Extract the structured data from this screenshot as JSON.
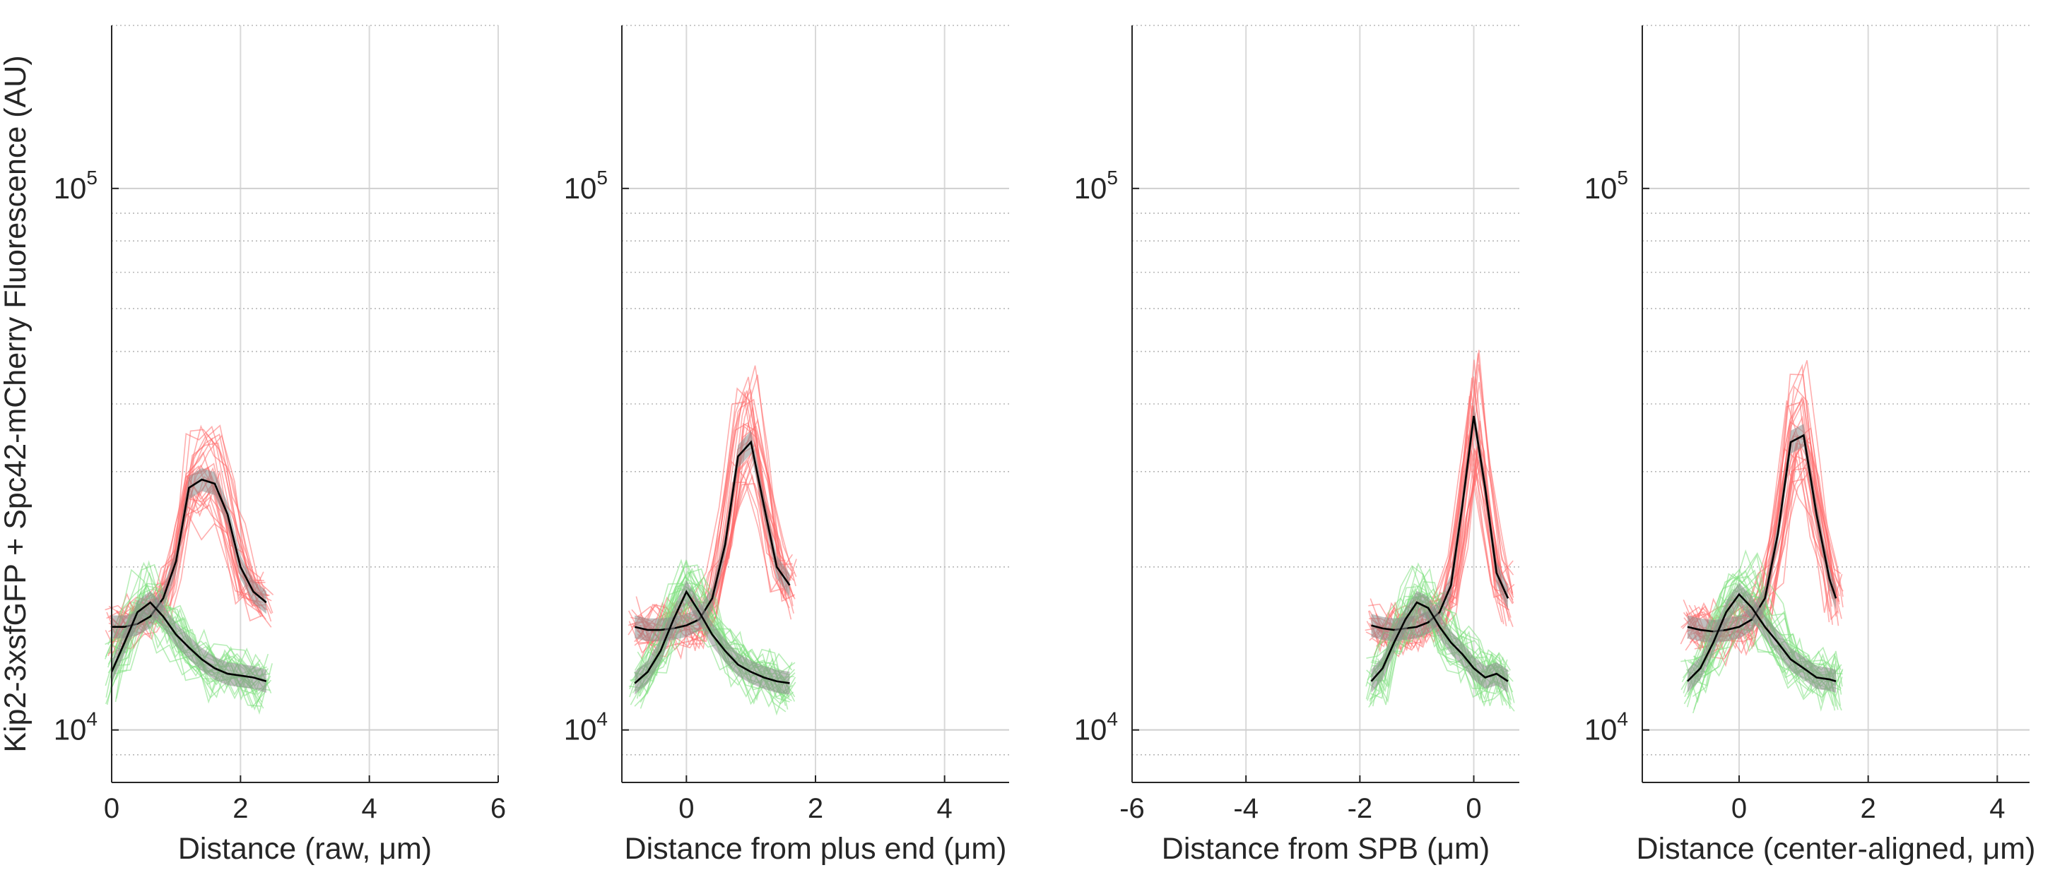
{
  "figure": {
    "ylabel": "Kip2-3xsfGFP + Spc42-mCherry Fluorescence (AU)",
    "colors": {
      "red_traces": "#ff6b6b",
      "green_traces": "#7ee07e",
      "mean_line": "#000000",
      "confidence_band": "#8c8c8c",
      "grid": "#d9d9d9"
    }
  },
  "chart_data": [
    {
      "type": "line",
      "xlabel": "Distance (raw, μm)",
      "xlim": [
        0,
        6
      ],
      "xticks": [
        0,
        2,
        4,
        6
      ],
      "xtick_labels": [
        "0",
        "2",
        "4",
        "6"
      ],
      "yscale": "log",
      "ylim": [
        8000,
        200000
      ],
      "ytick_labels": [
        "10^4",
        "10^5"
      ],
      "grid": "on",
      "series": [
        {
          "color": "red",
          "x": [
            0,
            0.2,
            0.4,
            0.6,
            0.8,
            1.0,
            1.2,
            1.4,
            1.6,
            1.8,
            2.0,
            2.2,
            2.4
          ],
          "y": [
            15500,
            15500,
            15700,
            16200,
            17500,
            20500,
            28000,
            29000,
            28500,
            25000,
            20000,
            18000,
            17200
          ]
        },
        {
          "color": "green",
          "x": [
            0,
            0.2,
            0.4,
            0.6,
            0.8,
            1.0,
            1.2,
            1.4,
            1.6,
            1.8,
            2.0,
            2.2,
            2.4
          ],
          "y": [
            12800,
            14500,
            16500,
            17200,
            16200,
            15000,
            14200,
            13500,
            13000,
            12700,
            12600,
            12500,
            12300
          ]
        }
      ]
    },
    {
      "type": "line",
      "xlabel": "Distance from plus end (μm)",
      "xlim": [
        -1,
        5
      ],
      "xticks": [
        0,
        2,
        4
      ],
      "xtick_labels": [
        "0",
        "2",
        "4"
      ],
      "yscale": "log",
      "ylim": [
        8000,
        200000
      ],
      "ytick_labels": [
        "10^4",
        "10^5"
      ],
      "grid": "on",
      "series": [
        {
          "color": "red",
          "x": [
            -0.8,
            -0.6,
            -0.4,
            -0.2,
            0,
            0.2,
            0.4,
            0.6,
            0.8,
            1.0,
            1.2,
            1.4,
            1.6
          ],
          "y": [
            15500,
            15300,
            15300,
            15400,
            15600,
            16000,
            17500,
            22000,
            32000,
            34000,
            26000,
            20000,
            18500
          ]
        },
        {
          "color": "green",
          "x": [
            -0.8,
            -0.6,
            -0.4,
            -0.2,
            0,
            0.2,
            0.4,
            0.6,
            0.8,
            1.0,
            1.2,
            1.4,
            1.6
          ],
          "y": [
            12200,
            12800,
            14000,
            16000,
            18000,
            16500,
            15000,
            14000,
            13200,
            12800,
            12500,
            12300,
            12200
          ]
        }
      ]
    },
    {
      "type": "line",
      "xlabel": "Distance from SPB (μm)",
      "xlim": [
        -6,
        0.8
      ],
      "xticks": [
        -6,
        -4,
        -2,
        0
      ],
      "xtick_labels": [
        "-6",
        "-4",
        "-2",
        "0"
      ],
      "yscale": "log",
      "ylim": [
        8000,
        200000
      ],
      "ytick_labels": [
        "10^4",
        "10^5"
      ],
      "grid": "on",
      "series": [
        {
          "color": "red",
          "x": [
            -1.8,
            -1.6,
            -1.4,
            -1.2,
            -1.0,
            -0.8,
            -0.6,
            -0.4,
            -0.2,
            0,
            0.2,
            0.4,
            0.6
          ],
          "y": [
            15600,
            15400,
            15300,
            15400,
            15500,
            15800,
            16500,
            18500,
            26000,
            38000,
            28000,
            19500,
            17500
          ]
        },
        {
          "color": "green",
          "x": [
            -1.8,
            -1.6,
            -1.4,
            -1.2,
            -1.0,
            -0.8,
            -0.6,
            -0.4,
            -0.2,
            0,
            0.2,
            0.4,
            0.6
          ],
          "y": [
            12300,
            13000,
            14500,
            16000,
            17200,
            16800,
            15500,
            14500,
            13800,
            13000,
            12500,
            12700,
            12300
          ]
        }
      ]
    },
    {
      "type": "line",
      "xlabel": "Distance (center-aligned, μm)",
      "xlim": [
        -1.5,
        4.5
      ],
      "xticks": [
        0,
        2,
        4
      ],
      "xtick_labels": [
        "0",
        "2",
        "4"
      ],
      "yscale": "log",
      "ylim": [
        8000,
        200000
      ],
      "ytick_labels": [
        "10^4",
        "10^5"
      ],
      "grid": "on",
      "series": [
        {
          "color": "red",
          "x": [
            -0.8,
            -0.6,
            -0.4,
            -0.2,
            0,
            0.2,
            0.4,
            0.6,
            0.8,
            1.0,
            1.2,
            1.4,
            1.5
          ],
          "y": [
            15500,
            15300,
            15200,
            15300,
            15500,
            16000,
            17500,
            23000,
            34000,
            35000,
            25000,
            19000,
            17500
          ]
        },
        {
          "color": "green",
          "x": [
            -0.8,
            -0.6,
            -0.4,
            -0.2,
            0,
            0.2,
            0.4,
            0.6,
            0.8,
            1.0,
            1.2,
            1.4,
            1.5
          ],
          "y": [
            12300,
            13000,
            14500,
            16500,
            17800,
            16800,
            15500,
            14500,
            13500,
            13000,
            12500,
            12400,
            12300
          ]
        }
      ]
    }
  ]
}
